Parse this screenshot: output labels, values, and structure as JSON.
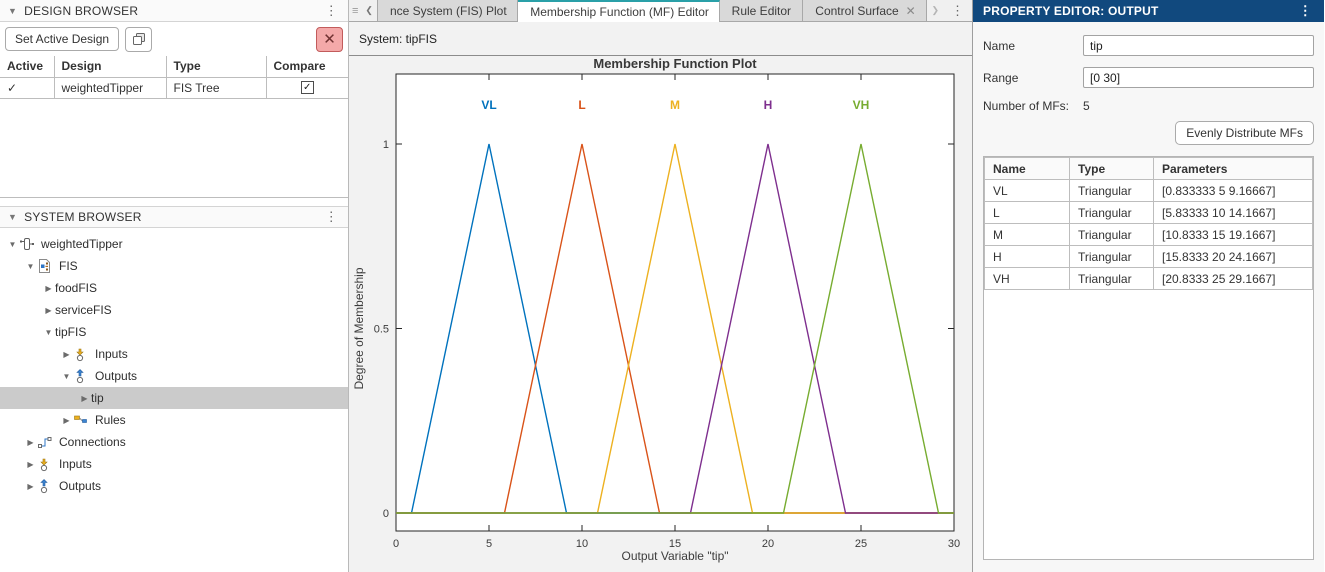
{
  "icons": {
    "kebab": "⋮",
    "grip": "≡",
    "chevron_left": "❮",
    "chevron_right": "❯",
    "close": "✕",
    "tab_close": "✕",
    "check": "✓",
    "caret_down": "▼",
    "expander_expanded": "▼",
    "expander_collapsed": "▶"
  },
  "design_browser": {
    "title": "DESIGN BROWSER",
    "set_active_button": "Set Active Design",
    "table": {
      "headers": [
        "Active",
        "Design",
        "Type",
        "Compare"
      ],
      "rows": [
        {
          "active": "✓",
          "design": "weightedTipper",
          "type": "FIS Tree",
          "compare_checked": "✓"
        }
      ]
    }
  },
  "system_browser": {
    "title": "SYSTEM BROWSER",
    "items": [
      {
        "label": "weightedTipper",
        "level": 0,
        "state": "expanded",
        "icon": "fis-tree"
      },
      {
        "label": "FIS",
        "level": 1,
        "state": "expanded",
        "icon": "fis-doc"
      },
      {
        "label": "foodFIS",
        "level": 2,
        "state": "collapsed",
        "icon": ""
      },
      {
        "label": "serviceFIS",
        "level": 2,
        "state": "collapsed",
        "icon": ""
      },
      {
        "label": "tipFIS",
        "level": 2,
        "state": "expanded",
        "icon": ""
      },
      {
        "label": "Inputs",
        "level": 3,
        "state": "collapsed",
        "icon": "inputs"
      },
      {
        "label": "Outputs",
        "level": 3,
        "state": "expanded",
        "icon": "outputs"
      },
      {
        "label": "tip",
        "level": 4,
        "state": "collapsed",
        "icon": "",
        "selected": true
      },
      {
        "label": "Rules",
        "level": 3,
        "state": "collapsed",
        "icon": "rules"
      },
      {
        "label": "Connections",
        "level": 1,
        "state": "collapsed",
        "icon": "connections"
      },
      {
        "label": "Inputs",
        "level": 1,
        "state": "collapsed",
        "icon": "inputs"
      },
      {
        "label": "Outputs",
        "level": 1,
        "state": "collapsed",
        "icon": "outputs"
      }
    ]
  },
  "tabs": {
    "items": [
      {
        "label": "nce System (FIS) Plot",
        "active": false,
        "closable": false
      },
      {
        "label": "Membership Function (MF) Editor",
        "active": true,
        "closable": false
      },
      {
        "label": "Rule Editor",
        "active": false,
        "closable": false
      },
      {
        "label": "Control Surface",
        "active": false,
        "closable": true
      }
    ]
  },
  "document": {
    "system_label": "System: tipFIS"
  },
  "chart_data": {
    "type": "line",
    "title": "Membership Function Plot",
    "xlabel": "Output Variable \"tip\"",
    "ylabel": "Degree of Membership",
    "xlim": [
      0,
      30
    ],
    "ylim": [
      0,
      1
    ],
    "x_ticks": [
      0,
      5,
      10,
      15,
      20,
      25,
      30
    ],
    "y_ticks": [
      0,
      0.5,
      1
    ],
    "grid": false,
    "legend_position": "labels-above-peaks",
    "series": [
      {
        "name": "VL",
        "color": "#0072bd",
        "shape": "triangular",
        "params": [
          0.833333,
          5,
          9.16667
        ]
      },
      {
        "name": "L",
        "color": "#d95319",
        "shape": "triangular",
        "params": [
          5.83333,
          10,
          14.1667
        ]
      },
      {
        "name": "M",
        "color": "#edb120",
        "shape": "triangular",
        "params": [
          10.8333,
          15,
          19.1667
        ]
      },
      {
        "name": "H",
        "color": "#7e2f8e",
        "shape": "triangular",
        "params": [
          15.8333,
          20,
          24.1667
        ]
      },
      {
        "name": "VH",
        "color": "#77ac30",
        "shape": "triangular",
        "params": [
          20.8333,
          25,
          29.1667
        ]
      }
    ]
  },
  "property_editor": {
    "title": "PROPERTY EDITOR: OUTPUT",
    "name_label": "Name",
    "name_value": "tip",
    "range_label": "Range",
    "range_value": "[0 30]",
    "num_mfs_label": "Number of MFs:",
    "num_mfs_value": "5",
    "distribute_button": "Evenly Distribute MFs",
    "mf_table": {
      "headers": [
        "Name",
        "Type",
        "Parameters"
      ],
      "rows": [
        {
          "name": "VL",
          "type": "Triangular",
          "parameters": "[0.833333 5 9.16667]"
        },
        {
          "name": "L",
          "type": "Triangular",
          "parameters": "[5.83333 10 14.1667]"
        },
        {
          "name": "M",
          "type": "Triangular",
          "parameters": "[10.8333 15 19.1667]"
        },
        {
          "name": "H",
          "type": "Triangular",
          "parameters": "[15.8333 20 24.1667]"
        },
        {
          "name": "VH",
          "type": "Triangular",
          "parameters": "[20.8333 25 29.1667]"
        }
      ]
    }
  }
}
